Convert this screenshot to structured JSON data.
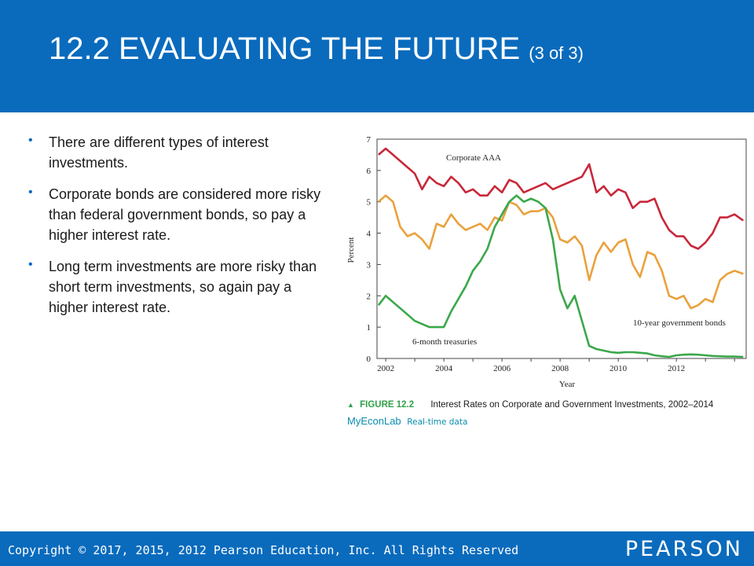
{
  "slide": {
    "title": "12.2 EVALUATING THE FUTURE",
    "title_suffix": "(3 of 3)",
    "header_color": "#0a6bbd",
    "bullets": [
      "There are different types of interest investments.",
      "Corporate bonds are considered more risky than federal government bonds, so pay a higher interest rate.",
      "Long term investments are more risky than short term investments, so again pay a higher interest rate."
    ]
  },
  "figure": {
    "label": "FIGURE 12.2",
    "caption": "Interest Rates on Corporate and Government Investments, 2002–2014",
    "brand": "MyEconLab",
    "brand_note": "Real-time data"
  },
  "footer": {
    "copyright": "Copyright © 2017, 2015, 2012 Pearson Education, Inc. All Rights Reserved",
    "logo": "PEARSON"
  },
  "chart_data": {
    "type": "line",
    "xlabel": "Year",
    "ylabel": "Percent",
    "xlim": [
      2001.7,
      2014.4
    ],
    "ylim": [
      0,
      7
    ],
    "xticks": [
      "2002",
      "2004",
      "2006",
      "2008",
      "2010",
      "2012"
    ],
    "yticks": [
      "0",
      "1",
      "2",
      "3",
      "4",
      "5",
      "6",
      "7"
    ],
    "grid": false,
    "series": [
      {
        "name": "Corporate AAA",
        "color": "#c8283a",
        "x": [
          2001.75,
          2002.0,
          2002.25,
          2002.5,
          2002.75,
          2003.0,
          2003.25,
          2003.5,
          2003.75,
          2004.0,
          2004.25,
          2004.5,
          2004.75,
          2005.0,
          2005.25,
          2005.5,
          2005.75,
          2006.0,
          2006.25,
          2006.5,
          2006.75,
          2007.0,
          2007.25,
          2007.5,
          2007.75,
          2008.0,
          2008.25,
          2008.5,
          2008.75,
          2009.0,
          2009.25,
          2009.5,
          2009.75,
          2010.0,
          2010.25,
          2010.5,
          2010.75,
          2011.0,
          2011.25,
          2011.5,
          2011.75,
          2012.0,
          2012.25,
          2012.5,
          2012.75,
          2013.0,
          2013.25,
          2013.5,
          2013.75,
          2014.0,
          2014.3
        ],
        "y": [
          6.5,
          6.7,
          6.5,
          6.3,
          6.1,
          5.9,
          5.4,
          5.8,
          5.6,
          5.5,
          5.8,
          5.6,
          5.3,
          5.4,
          5.2,
          5.2,
          5.5,
          5.3,
          5.7,
          5.6,
          5.3,
          5.4,
          5.5,
          5.6,
          5.4,
          5.5,
          5.6,
          5.7,
          5.8,
          6.2,
          5.3,
          5.5,
          5.2,
          5.4,
          5.3,
          4.8,
          5.0,
          5.0,
          5.1,
          4.5,
          4.1,
          3.9,
          3.9,
          3.6,
          3.5,
          3.7,
          4.0,
          4.5,
          4.5,
          4.6,
          4.4
        ]
      },
      {
        "name": "10-year government bonds",
        "color": "#eaa13c",
        "x": [
          2001.75,
          2002.0,
          2002.25,
          2002.5,
          2002.75,
          2003.0,
          2003.25,
          2003.5,
          2003.75,
          2004.0,
          2004.25,
          2004.5,
          2004.75,
          2005.0,
          2005.25,
          2005.5,
          2005.75,
          2006.0,
          2006.25,
          2006.5,
          2006.75,
          2007.0,
          2007.25,
          2007.5,
          2007.75,
          2008.0,
          2008.25,
          2008.5,
          2008.75,
          2009.0,
          2009.25,
          2009.5,
          2009.75,
          2010.0,
          2010.25,
          2010.5,
          2010.75,
          2011.0,
          2011.25,
          2011.5,
          2011.75,
          2012.0,
          2012.25,
          2012.5,
          2012.75,
          2013.0,
          2013.25,
          2013.5,
          2013.75,
          2014.0,
          2014.3
        ],
        "y": [
          5.0,
          5.2,
          5.0,
          4.2,
          3.9,
          4.0,
          3.8,
          3.5,
          4.3,
          4.2,
          4.6,
          4.3,
          4.1,
          4.2,
          4.3,
          4.1,
          4.5,
          4.4,
          5.0,
          4.9,
          4.6,
          4.7,
          4.7,
          4.8,
          4.5,
          3.8,
          3.7,
          3.9,
          3.6,
          2.5,
          3.3,
          3.7,
          3.4,
          3.7,
          3.8,
          3.0,
          2.6,
          3.4,
          3.3,
          2.8,
          2.0,
          1.9,
          2.0,
          1.6,
          1.7,
          1.9,
          1.8,
          2.5,
          2.7,
          2.8,
          2.7
        ]
      },
      {
        "name": "6-month treasuries",
        "color": "#3aa84a",
        "x": [
          2001.75,
          2002.0,
          2002.25,
          2002.5,
          2002.75,
          2003.0,
          2003.25,
          2003.5,
          2003.75,
          2004.0,
          2004.25,
          2004.5,
          2004.75,
          2005.0,
          2005.25,
          2005.5,
          2005.75,
          2006.0,
          2006.25,
          2006.5,
          2006.75,
          2007.0,
          2007.25,
          2007.5,
          2007.75,
          2008.0,
          2008.25,
          2008.5,
          2008.75,
          2009.0,
          2009.25,
          2009.5,
          2009.75,
          2010.0,
          2010.25,
          2010.5,
          2010.75,
          2011.0,
          2011.25,
          2011.5,
          2011.75,
          2012.0,
          2012.25,
          2012.5,
          2012.75,
          2013.0,
          2013.25,
          2013.5,
          2013.75,
          2014.0,
          2014.3
        ],
        "y": [
          1.7,
          2.0,
          1.8,
          1.6,
          1.4,
          1.2,
          1.1,
          1.0,
          1.0,
          1.0,
          1.5,
          1.9,
          2.3,
          2.8,
          3.1,
          3.5,
          4.2,
          4.6,
          5.0,
          5.2,
          5.0,
          5.1,
          5.0,
          4.8,
          3.8,
          2.2,
          1.6,
          2.0,
          1.2,
          0.4,
          0.3,
          0.25,
          0.2,
          0.18,
          0.2,
          0.2,
          0.18,
          0.16,
          0.1,
          0.07,
          0.05,
          0.1,
          0.12,
          0.13,
          0.12,
          0.1,
          0.08,
          0.07,
          0.06,
          0.06,
          0.05
        ]
      }
    ],
    "annotations": [
      "Corporate AAA",
      "10-year government bonds",
      "6-month treasuries"
    ]
  }
}
